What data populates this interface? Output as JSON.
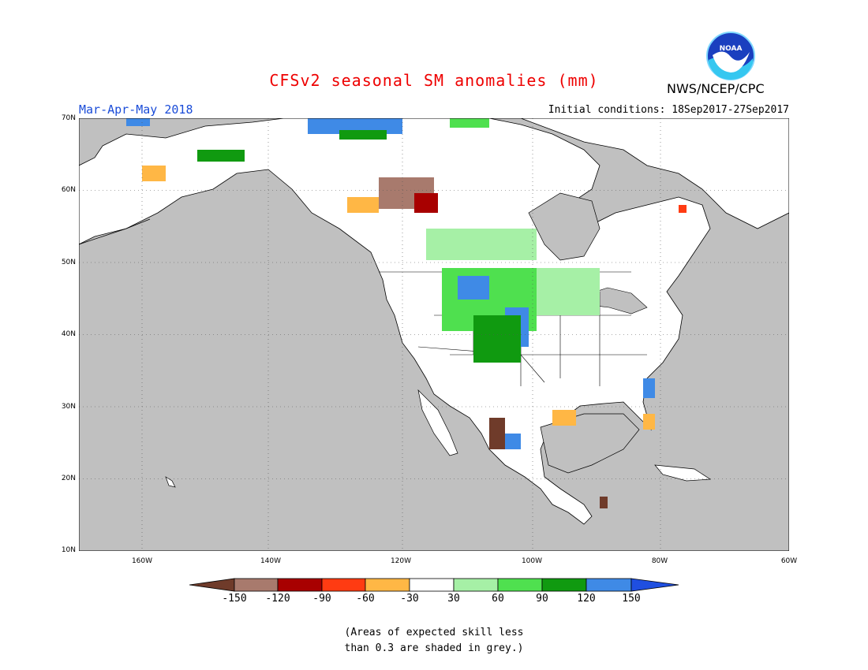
{
  "header": {
    "title": "CFSv2 seasonal SM anomalies (mm)",
    "period": "Mar-Apr-May 2018",
    "initial_conditions": "Initial conditions: 18Sep2017-27Sep2017",
    "agency": "NWS/NCEP/CPC",
    "logo_text": "NOAA"
  },
  "map": {
    "lon_range": [
      -172,
      -60
    ],
    "lat_range": [
      10,
      70
    ],
    "lat_labels": [
      "70N",
      "60N",
      "50N",
      "40N",
      "30N",
      "20N",
      "10N"
    ],
    "lon_labels": [
      "160W",
      "140W",
      "120W",
      "100W",
      "80W",
      "60W"
    ],
    "ocean_color": "#c0c0c0",
    "land_color": "#ffffff",
    "grid_style": "dotted"
  },
  "legend": {
    "labels": [
      "-150",
      "-120",
      "-90",
      "-60",
      "-30",
      "30",
      "60",
      "90",
      "120",
      "150"
    ],
    "colors": [
      "#6f3b2a",
      "#a87a6d",
      "#a80000",
      "#ff3b12",
      "#ffb745",
      "#ffffff",
      "#a6f0a6",
      "#4fe04f",
      "#109a10",
      "#3f8ae6",
      "#1f4fe0"
    ]
  },
  "note": {
    "line1": "(Areas of expected skill less",
    "line2": "than 0.3 are shaded in grey.)"
  }
}
